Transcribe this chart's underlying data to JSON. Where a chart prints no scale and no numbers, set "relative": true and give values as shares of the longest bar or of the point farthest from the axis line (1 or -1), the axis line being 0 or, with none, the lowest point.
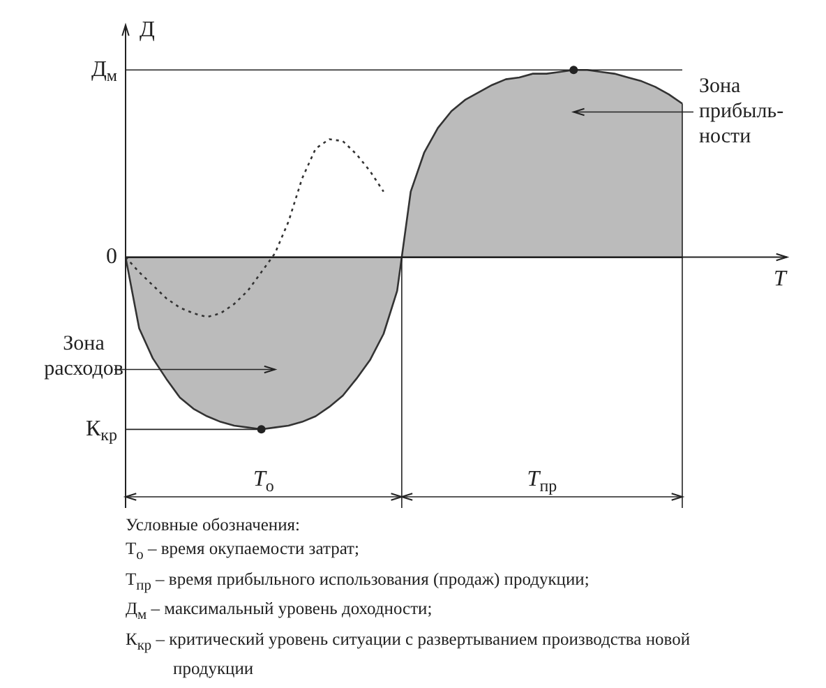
{
  "chart_data": {
    "type": "area",
    "relative": true,
    "xlabel": "T",
    "ylabel": "Д",
    "legend": false,
    "categories": [
      null,
      null,
      null,
      null,
      null,
      null,
      null,
      null,
      null,
      null,
      null,
      null,
      null,
      null,
      null,
      null,
      null,
      null,
      null,
      null,
      null,
      null,
      null,
      null,
      null,
      null,
      null,
      null,
      null,
      null,
      null,
      null,
      null,
      null,
      null,
      null,
      null,
      null,
      null,
      null,
      null,
      null
    ],
    "series": [
      {
        "color": "#333333",
        "values": [
          0,
          -0.38,
          -0.54,
          -0.65,
          -0.75,
          -0.81,
          -0.85,
          -0.88,
          -0.9,
          -0.91,
          -0.92,
          -0.91,
          -0.9,
          -0.88,
          -0.85,
          -0.8,
          -0.74,
          -0.65,
          -0.55,
          -0.41,
          -0.18,
          0.35,
          0.56,
          0.69,
          0.78,
          0.84,
          0.88,
          0.92,
          0.95,
          0.96,
          0.98,
          0.98,
          0.99,
          1,
          1,
          0.99,
          0.98,
          0.96,
          0.94,
          0.91,
          0.87,
          0.82
        ]
      },
      {
        "type": "line",
        "color": "#333333",
        "line_style": "dotted",
        "values": [
          0,
          -0.08,
          -0.15,
          -0.22,
          -0.27,
          -0.3,
          -0.32,
          -0.3,
          -0.25,
          -0.18,
          -0.08,
          0.02,
          0.19,
          0.42,
          0.58,
          0.63,
          0.62,
          0.55,
          0.46,
          0.35,
          null,
          null,
          null,
          null,
          null,
          null,
          null,
          null,
          null,
          null,
          null,
          null,
          null,
          null,
          null,
          null,
          null,
          null,
          null,
          null,
          null,
          null
        ]
      }
    ],
    "ref_lines": [
      {
        "axis": "y",
        "value": 1,
        "label": "Д$_{м}$"
      },
      {
        "axis": "y",
        "value": 0,
        "label": "0"
      },
      {
        "axis": "y",
        "value": -0.92,
        "label": "К$_{кр}$"
      }
    ],
    "annotations": [
      "Зона прибыль-ности",
      "Зона расходов",
      "T$_{о}$",
      "T$_{пр}$",
      "Условные обозначения:",
      "T$_{о}$ – время окупаемости затрат;",
      "T$_{пр}$ – время прибыльного использования (продаж) продукции;",
      "Д$_{м}$ – максимальный уровень доходности;",
      "К$_{кр}$ – критический уровень ситуации с развертыванием производства новой продукции"
    ]
  }
}
